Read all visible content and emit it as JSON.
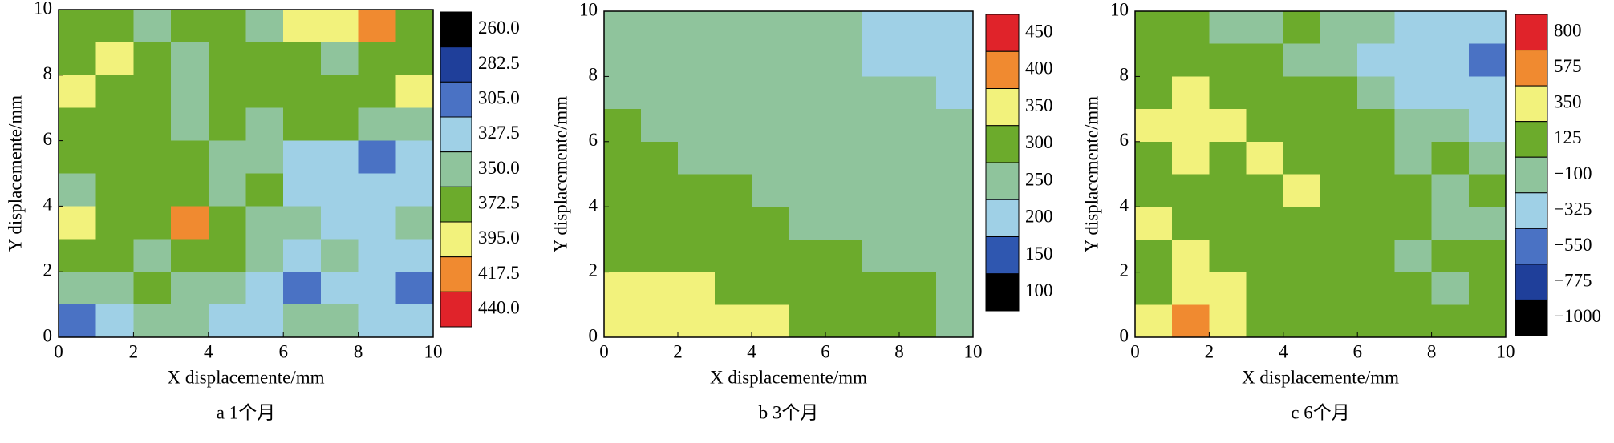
{
  "chart_data": [
    {
      "type": "contour",
      "caption": "a  1个月",
      "xlabel": "X displacemente/mm",
      "ylabel": "Y displacemente/mm",
      "xlim": [
        0,
        10
      ],
      "ylim": [
        0,
        10
      ],
      "xticks": [
        0,
        2,
        4,
        6,
        8,
        10
      ],
      "yticks": [
        0,
        2,
        4,
        6,
        8,
        10
      ],
      "x": [
        0.5,
        1.5,
        2.5,
        3.5,
        4.5,
        5.5,
        6.5,
        7.5,
        8.5,
        9.5
      ],
      "y": [
        9.5,
        8.5,
        7.5,
        6.5,
        5.5,
        4.5,
        3.5,
        2.5,
        1.5,
        0.5
      ],
      "z": [
        [
          380,
          375,
          370,
          375,
          380,
          372,
          400,
          395,
          420,
          385
        ],
        [
          390,
          400,
          375,
          360,
          380,
          385,
          375,
          365,
          380,
          375
        ],
        [
          395,
          380,
          375,
          370,
          390,
          385,
          380,
          390,
          375,
          395
        ],
        [
          385,
          375,
          380,
          360,
          375,
          370,
          380,
          375,
          360,
          370
        ],
        [
          375,
          380,
          385,
          375,
          360,
          365,
          340,
          330,
          310,
          340
        ],
        [
          365,
          380,
          375,
          390,
          370,
          375,
          345,
          335,
          330,
          340
        ],
        [
          395,
          390,
          375,
          420,
          380,
          372,
          355,
          340,
          345,
          355
        ],
        [
          380,
          375,
          360,
          380,
          375,
          360,
          345,
          355,
          340,
          330
        ],
        [
          370,
          360,
          375,
          365,
          350,
          340,
          320,
          345,
          330,
          310
        ],
        [
          310,
          335,
          360,
          355,
          345,
          340,
          355,
          350,
          340,
          335
        ]
      ],
      "levels": [
        {
          "value": 260,
          "label": "260.0"
        },
        {
          "value": 282.5,
          "label": "282.5"
        },
        {
          "value": 305,
          "label": "305.0"
        },
        {
          "value": 327.5,
          "label": "327.5"
        },
        {
          "value": 350,
          "label": "350.0"
        },
        {
          "value": 372.5,
          "label": "372.5"
        },
        {
          "value": 395,
          "label": "395.0"
        },
        {
          "value": 417.5,
          "label": "417.5"
        },
        {
          "value": 440,
          "label": "440.0"
        }
      ],
      "colors": [
        "#000000",
        "#1f3f9a",
        "#4a72c4",
        "#9fd0e6",
        "#8fc49c",
        "#6cab2c",
        "#f2f27c",
        "#f08a30",
        "#e0232a"
      ]
    },
    {
      "type": "contour",
      "caption": "b  3个月",
      "xlabel": "X displacemente/mm",
      "ylabel": "Y displacemente/mm",
      "xlim": [
        0,
        10
      ],
      "ylim": [
        0,
        10
      ],
      "xticks": [
        0,
        2,
        4,
        6,
        8,
        10
      ],
      "yticks": [
        0,
        2,
        4,
        6,
        8,
        10
      ],
      "x": [
        0.5,
        1.5,
        2.5,
        3.5,
        4.5,
        5.5,
        6.5,
        7.5,
        8.5,
        9.5
      ],
      "y": [
        9.5,
        8.5,
        7.5,
        6.5,
        5.5,
        4.5,
        3.5,
        2.5,
        1.5,
        0.5
      ],
      "z": [
        [
          275,
          270,
          280,
          275,
          270,
          265,
          260,
          240,
          220,
          230
        ],
        [
          280,
          275,
          270,
          265,
          270,
          260,
          255,
          245,
          240,
          225
        ],
        [
          290,
          285,
          280,
          275,
          270,
          270,
          265,
          255,
          250,
          240
        ],
        [
          300,
          295,
          285,
          280,
          275,
          275,
          270,
          265,
          260,
          255
        ],
        [
          310,
          305,
          295,
          290,
          285,
          280,
          275,
          270,
          265,
          260
        ],
        [
          315,
          310,
          305,
          300,
          290,
          285,
          280,
          275,
          270,
          265
        ],
        [
          320,
          315,
          310,
          305,
          300,
          295,
          290,
          285,
          275,
          270
        ],
        [
          340,
          330,
          320,
          315,
          310,
          305,
          300,
          295,
          285,
          280
        ],
        [
          360,
          355,
          350,
          340,
          330,
          320,
          310,
          305,
          300,
          290
        ],
        [
          370,
          365,
          360,
          355,
          350,
          345,
          320,
          305,
          300,
          295
        ]
      ],
      "levels": [
        450,
        400,
        350,
        300,
        250,
        200,
        150,
        100
      ],
      "colors": [
        "#e0232a",
        "#f08a30",
        "#f2f27c",
        "#6cab2c",
        "#8fc49c",
        "#9fd0e6",
        "#2f57b0",
        "#000000"
      ]
    },
    {
      "type": "contour",
      "caption": "c  6个月",
      "xlabel": "X displacemente/mm",
      "ylabel": "Y displacemente/mm",
      "xlim": [
        0,
        10
      ],
      "ylim": [
        0,
        10
      ],
      "xticks": [
        0,
        2,
        4,
        6,
        8,
        10
      ],
      "yticks": [
        0,
        2,
        4,
        6,
        8,
        10
      ],
      "x": [
        0.5,
        1.5,
        2.5,
        3.5,
        4.5,
        5.5,
        6.5,
        7.5,
        8.5,
        9.5
      ],
      "y": [
        9.5,
        8.5,
        7.5,
        6.5,
        5.5,
        4.5,
        3.5,
        2.5,
        1.5,
        0.5
      ],
      "z": [
        [
          140,
          130,
          120,
          -50,
          130,
          60,
          -80,
          -150,
          -200,
          -250
        ],
        [
          200,
          250,
          180,
          150,
          120,
          -60,
          -120,
          -200,
          -300,
          -350
        ],
        [
          300,
          380,
          250,
          200,
          150,
          130,
          -50,
          -120,
          -150,
          -200
        ],
        [
          360,
          400,
          350,
          250,
          180,
          140,
          130,
          -60,
          -80,
          -120
        ],
        [
          250,
          380,
          300,
          360,
          200,
          150,
          130,
          -50,
          130,
          -80
        ],
        [
          300,
          250,
          200,
          180,
          360,
          150,
          140,
          130,
          -60,
          130
        ],
        [
          380,
          300,
          260,
          200,
          150,
          250,
          140,
          130,
          -50,
          -60
        ],
        [
          250,
          360,
          300,
          200,
          250,
          130,
          140,
          -50,
          130,
          130
        ],
        [
          300,
          360,
          350,
          250,
          200,
          150,
          130,
          140,
          -40,
          130
        ],
        [
          400,
          650,
          360,
          300,
          200,
          250,
          140,
          130,
          150,
          130
        ]
      ],
      "levels": [
        800,
        575,
        350,
        125,
        {
          "value": -100,
          "label": "−100"
        },
        {
          "value": -325,
          "label": "−325"
        },
        {
          "value": -550,
          "label": "−550"
        },
        {
          "value": -775,
          "label": "−775"
        },
        {
          "value": -1000,
          "label": "−1000"
        }
      ],
      "colors": [
        "#e0232a",
        "#f08a30",
        "#f2f27c",
        "#6cab2c",
        "#8fc49c",
        "#9fd0e6",
        "#4a72c4",
        "#1f3f9a",
        "#000000"
      ]
    }
  ]
}
